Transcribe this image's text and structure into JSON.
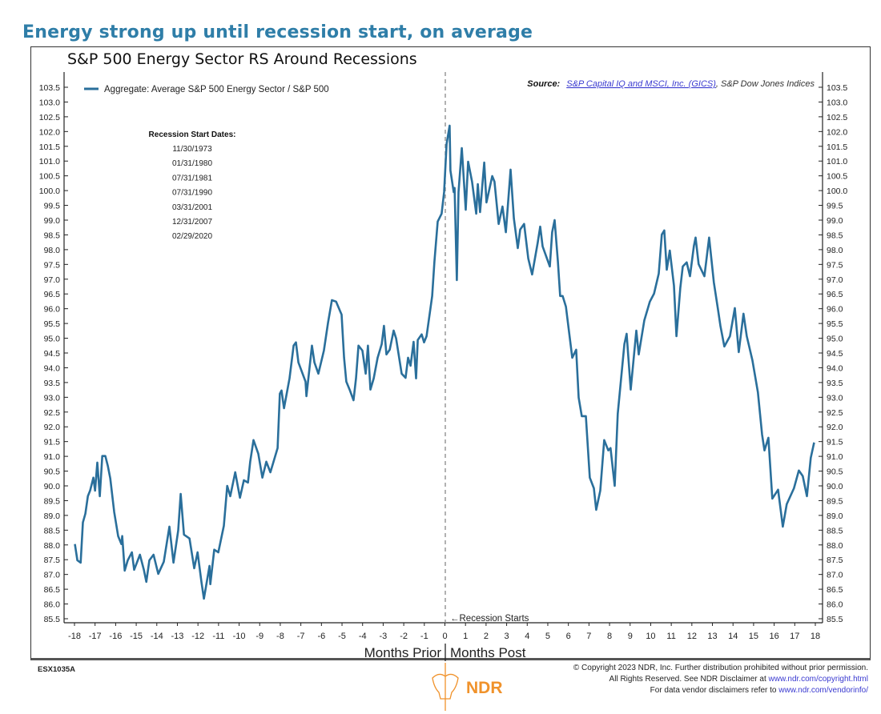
{
  "headline": "Energy strong up until recession start, on average",
  "chart_data": {
    "type": "line",
    "title": "S&P 500 Energy Sector RS Around Recessions",
    "xlabel_left": "Months Prior",
    "xlabel_right": "Months Post",
    "xlim": [
      -18,
      18
    ],
    "ylim": [
      85.5,
      103.5
    ],
    "x_ticks": [
      -18,
      -17,
      -16,
      -15,
      -14,
      -13,
      -12,
      -11,
      -10,
      -9,
      -8,
      -7,
      -6,
      -5,
      -4,
      -3,
      -2,
      -1,
      0,
      1,
      2,
      3,
      4,
      5,
      6,
      7,
      8,
      9,
      10,
      11,
      12,
      13,
      14,
      15,
      16,
      17,
      18
    ],
    "y_ticks": [
      "103.5",
      "103.0",
      "102.5",
      "102.0",
      "101.5",
      "101.0",
      "100.5",
      "100.0",
      "99.5",
      "99.0",
      "98.5",
      "98.0",
      "97.5",
      "97.0",
      "96.5",
      "96.0",
      "95.5",
      "95.0",
      "94.5",
      "94.0",
      "93.5",
      "93.0",
      "92.5",
      "92.0",
      "91.5",
      "91.0",
      "90.5",
      "90.0",
      "89.5",
      "89.0",
      "88.5",
      "88.0",
      "87.5",
      "87.0",
      "86.5",
      "86.0",
      "85.5"
    ],
    "y_axis_both_sides": true,
    "grid": false,
    "legend_position": "top-left",
    "series": [
      {
        "name": "Aggregate: Average S&P 500 Energy Sector / S&P 500",
        "color": "#2a6f9b",
        "x": [
          -17.98,
          -17.86,
          -17.7,
          -17.59,
          -17.47,
          -17.35,
          -17.24,
          -17.08,
          -17.0,
          -16.89,
          -16.77,
          -16.65,
          -16.5,
          -16.38,
          -16.26,
          -16.07,
          -15.88,
          -15.72,
          -15.68,
          -15.56,
          -15.41,
          -15.21,
          -15.1,
          -14.82,
          -14.63,
          -14.51,
          -14.36,
          -14.16,
          -13.93,
          -13.66,
          -13.39,
          -13.19,
          -12.96,
          -12.84,
          -12.68,
          -12.41,
          -12.18,
          -12.02,
          -11.83,
          -11.71,
          -11.44,
          -11.4,
          -11.21,
          -11.01,
          -10.74,
          -10.58,
          -10.43,
          -10.19,
          -9.96,
          -9.77,
          -9.57,
          -9.46,
          -9.3,
          -9.07,
          -8.87,
          -8.68,
          -8.48,
          -8.13,
          -8.02,
          -7.94,
          -7.82,
          -7.55,
          -7.35,
          -7.24,
          -7.12,
          -6.77,
          -6.73,
          -6.46,
          -6.34,
          -6.15,
          -5.88,
          -5.68,
          -5.49,
          -5.29,
          -5.02,
          -4.9,
          -4.79,
          -4.63,
          -4.44,
          -4.32,
          -4.2,
          -4.01,
          -3.85,
          -3.74,
          -3.62,
          -3.46,
          -3.27,
          -3.07,
          -2.96,
          -2.84,
          -2.68,
          -2.49,
          -2.37,
          -2.1,
          -1.91,
          -1.79,
          -1.67,
          -1.52,
          -1.4,
          -1.32,
          -1.13,
          -1.01,
          -0.89,
          -0.7,
          -0.62,
          -0.51,
          -0.35,
          -0.16,
          -0.04,
          0.08,
          0.23,
          0.27,
          0.43,
          0.47,
          0.58,
          0.66,
          0.82,
          1.01,
          1.13,
          1.32,
          1.52,
          1.6,
          1.71,
          1.91,
          2.02,
          2.3,
          2.41,
          2.61,
          2.8,
          2.96,
          3.19,
          3.35,
          3.54,
          3.66,
          3.85,
          4.05,
          4.24,
          4.51,
          4.63,
          4.75,
          5.1,
          5.21,
          5.33,
          5.49,
          5.6,
          5.72,
          5.88,
          6.19,
          6.38,
          6.5,
          6.65,
          6.85,
          7.04,
          7.24,
          7.35,
          7.55,
          7.74,
          7.94,
          8.05,
          8.25,
          8.4,
          8.72,
          8.83,
          9.03,
          9.3,
          9.42,
          9.69,
          9.96,
          10.16,
          10.39,
          10.54,
          10.66,
          10.78,
          10.93,
          11.13,
          11.25,
          11.44,
          11.56,
          11.75,
          11.91,
          12.1,
          12.18,
          12.33,
          12.61,
          12.84,
          13.07,
          13.27,
          13.39,
          13.58,
          13.85,
          14.09,
          14.28,
          14.51,
          14.67,
          14.94,
          15.21,
          15.41,
          15.53,
          15.72,
          15.91,
          16.19,
          16.42,
          16.61,
          16.96,
          17.2,
          17.39,
          17.59,
          17.78,
          17.94
        ],
        "y": [
          88.03,
          87.48,
          87.4,
          88.76,
          89.06,
          89.65,
          89.84,
          90.28,
          89.84,
          90.79,
          89.65,
          91.01,
          91.01,
          90.68,
          90.25,
          89.11,
          88.3,
          88.03,
          88.3,
          87.13,
          87.48,
          87.75,
          87.16,
          87.67,
          87.16,
          86.75,
          87.48,
          87.67,
          87.02,
          87.43,
          88.62,
          87.4,
          88.49,
          89.73,
          88.35,
          88.22,
          87.21,
          87.75,
          86.75,
          86.18,
          87.29,
          86.67,
          87.84,
          87.75,
          88.65,
          90.0,
          89.65,
          90.46,
          89.6,
          90.19,
          90.11,
          90.82,
          91.55,
          91.09,
          90.28,
          90.82,
          90.46,
          91.28,
          93.12,
          93.23,
          92.63,
          93.64,
          94.75,
          94.86,
          94.18,
          93.53,
          93.04,
          94.75,
          94.18,
          93.8,
          94.58,
          95.53,
          96.29,
          96.24,
          95.8,
          94.34,
          93.53,
          93.26,
          92.9,
          93.64,
          94.75,
          94.58,
          93.8,
          94.75,
          93.26,
          93.64,
          94.34,
          94.8,
          95.42,
          94.45,
          94.61,
          95.26,
          94.99,
          93.8,
          93.66,
          94.34,
          94.07,
          94.88,
          93.64,
          94.94,
          95.13,
          94.86,
          95.07,
          96.02,
          96.43,
          97.59,
          98.95,
          99.22,
          99.95,
          101.58,
          102.2,
          100.68,
          99.95,
          100.09,
          96.97,
          99.95,
          101.44,
          99.35,
          100.98,
          100.3,
          99.22,
          100.22,
          99.27,
          100.95,
          99.6,
          100.49,
          100.3,
          98.87,
          99.46,
          98.59,
          100.71,
          99.06,
          98.05,
          98.68,
          98.87,
          97.7,
          97.16,
          98.24,
          98.78,
          98.11,
          97.43,
          98.59,
          99.0,
          97.59,
          96.43,
          96.43,
          96.07,
          94.34,
          94.61,
          92.99,
          92.36,
          92.36,
          90.28,
          89.92,
          89.19,
          89.84,
          91.55,
          91.2,
          91.28,
          90.0,
          92.44,
          94.8,
          95.15,
          93.26,
          95.26,
          94.45,
          95.61,
          96.24,
          96.51,
          97.19,
          98.51,
          98.65,
          97.32,
          97.97,
          96.78,
          95.07,
          96.7,
          97.43,
          97.57,
          97.1,
          98.13,
          98.41,
          97.51,
          97.1,
          98.41,
          96.89,
          95.97,
          95.42,
          94.72,
          95.07,
          96.02,
          94.53,
          95.83,
          95.07,
          94.26,
          93.17,
          91.74,
          91.2,
          91.63,
          89.57,
          89.87,
          88.62,
          89.38,
          89.92,
          90.52,
          90.33,
          89.65,
          90.95,
          91.47
        ]
      }
    ],
    "annotations": {
      "recession_marker": "Recession Starts",
      "recession_dates_title": "Recession Start Dates:",
      "recession_dates": [
        "11/30/1973",
        "01/31/1980",
        "07/31/1981",
        "07/31/1990",
        "03/31/2001",
        "12/31/2007",
        "02/29/2020"
      ],
      "source_label": "Source:",
      "source_link": "S&P Capital IQ and MSCI, Inc. (GICS)",
      "source_rest": ", S&P Dow Jones Indices"
    }
  },
  "footer": {
    "code": "ESX1035A",
    "logo_text": "NDR",
    "line1": "© Copyright 2023 NDR, Inc. Further distribution prohibited without prior permission.",
    "line2_text": "All Rights Reserved. See NDR Disclaimer at ",
    "line2_link": "www.ndr.com/copyright.html",
    "line3_text": "For data vendor disclaimers refer to ",
    "line3_link": "www.ndr.com/vendorinfo/"
  },
  "colors": {
    "headline": "#2f7ea8",
    "line": "#2a6f9b",
    "logo": "#f0922b",
    "link": "#3a3ad0"
  }
}
